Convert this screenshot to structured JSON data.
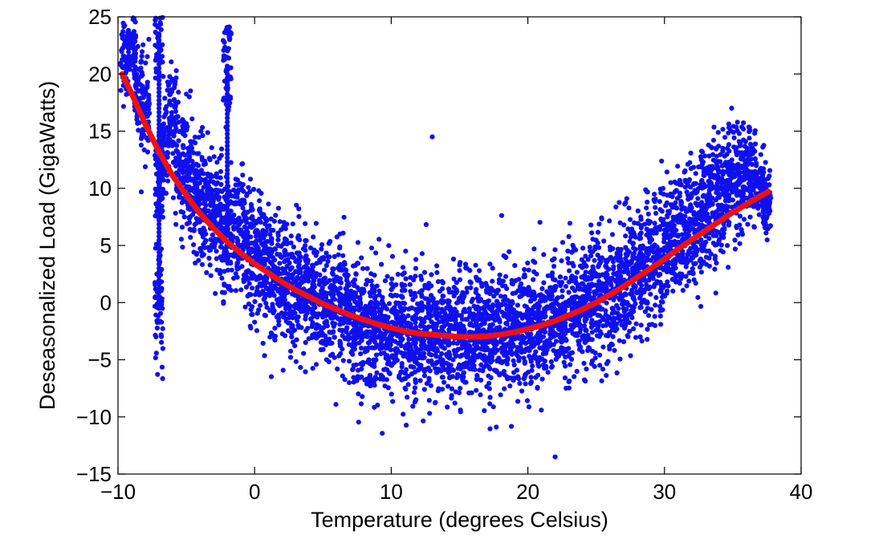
{
  "chart_data": {
    "type": "scatter",
    "title": "",
    "xlabel": "Temperature (degrees Celsius)",
    "ylabel": "Deseasonalized Load (GigaWatts)",
    "xlim": [
      -10,
      40
    ],
    "ylim": [
      -15,
      25
    ],
    "xticks": [
      -10,
      0,
      10,
      20,
      30,
      40
    ],
    "yticks": [
      -15,
      -10,
      -5,
      0,
      5,
      10,
      15,
      20,
      25
    ],
    "xtick_labels": [
      "−10",
      "0",
      "10",
      "20",
      "30",
      "40"
    ],
    "ytick_labels": [
      "−15",
      "−10",
      "−5",
      "0",
      "5",
      "10",
      "15",
      "20",
      "25"
    ],
    "grid": false,
    "legend": "none",
    "colors": {
      "scatter": "#1010ee",
      "fit": "#ee1111"
    },
    "series": [
      {
        "kind": "scatter",
        "x": [
          -9.5,
          -9.0,
          -8.5,
          -8.0,
          -7.0,
          -7.0,
          -7.0,
          -6.5,
          -6.0,
          -5.5,
          -5.0,
          -4.5,
          -4.0,
          -3.5,
          -3.0,
          -2.5,
          -2.0,
          -2.0,
          -1.5,
          -1.0,
          -0.5,
          0.0,
          0.5,
          1.0,
          1.5,
          2.0,
          2.5,
          3.0,
          3.5,
          4.0,
          4.5,
          5.0,
          5.5,
          6.0,
          6.5,
          7.0,
          7.5,
          8.0,
          8.5,
          9.0,
          9.5,
          10.0,
          10.5,
          11.0,
          11.5,
          12.0,
          12.5,
          13.0,
          13.5,
          14.0,
          14.5,
          15.0,
          15.5,
          16.0,
          16.5,
          17.0,
          17.5,
          18.0,
          18.5,
          19.0,
          19.5,
          20.0,
          20.5,
          21.0,
          21.5,
          22.0,
          22.5,
          23.0,
          23.5,
          24.0,
          24.5,
          25.0,
          25.5,
          26.0,
          26.5,
          27.0,
          27.5,
          28.0,
          28.5,
          29.0,
          29.5,
          30.0,
          30.5,
          31.0,
          31.5,
          32.0,
          32.5,
          33.0,
          33.5,
          34.0,
          34.5,
          35.0,
          35.5,
          36.0,
          36.5,
          37.0,
          37.5,
          -8.8,
          13.0,
          22.0
        ],
        "y": [
          21.5,
          23.0,
          18.5,
          17.0,
          23.5,
          10.5,
          -0.5,
          14.0,
          16.0,
          12.0,
          11.5,
          10.0,
          9.0,
          8.0,
          8.5,
          7.0,
          20.5,
          5.0,
          6.5,
          6.0,
          5.0,
          4.0,
          3.5,
          3.0,
          2.5,
          2.0,
          1.5,
          1.2,
          1.0,
          0.5,
          0.2,
          -0.2,
          -0.5,
          -0.8,
          -1.0,
          -1.3,
          -1.5,
          -1.8,
          -2.0,
          -2.1,
          -2.3,
          -2.4,
          -2.5,
          -2.6,
          -2.7,
          -2.8,
          -2.8,
          -2.9,
          -2.9,
          -2.9,
          -2.9,
          -2.9,
          -2.9,
          -2.8,
          -2.8,
          -2.7,
          -2.7,
          -2.6,
          -2.5,
          -2.4,
          -2.3,
          -2.2,
          -2.0,
          -1.9,
          -1.7,
          -1.5,
          -1.3,
          -1.1,
          -0.8,
          -0.5,
          -0.2,
          0.1,
          0.5,
          0.9,
          1.3,
          1.7,
          2.2,
          2.7,
          3.2,
          3.7,
          4.2,
          4.8,
          5.3,
          5.9,
          6.4,
          7.0,
          7.6,
          8.1,
          8.7,
          9.2,
          9.8,
          10.3,
          10.9,
          11.4,
          11.0,
          10.0,
          9.0,
          20.0,
          14.5,
          -13.5
        ],
        "spread": [
          3.0,
          3.0,
          3.0,
          3.5,
          4.0,
          4.0,
          4.0,
          4.0,
          4.0,
          4.5,
          4.5,
          4.5,
          4.5,
          4.5,
          4.5,
          4.5,
          4.5,
          4.5,
          4.5,
          4.5,
          4.5,
          4.5,
          4.5,
          4.5,
          4.5,
          4.5,
          4.5,
          4.5,
          4.5,
          4.5,
          4.5,
          4.5,
          4.5,
          4.5,
          4.5,
          4.5,
          4.5,
          4.5,
          4.5,
          4.5,
          4.5,
          4.5,
          4.5,
          4.5,
          4.5,
          4.5,
          4.5,
          4.5,
          4.5,
          4.5,
          4.5,
          4.5,
          4.5,
          4.5,
          4.5,
          4.5,
          4.5,
          4.5,
          4.5,
          4.5,
          4.5,
          4.5,
          4.5,
          4.5,
          4.5,
          4.5,
          4.5,
          4.5,
          4.5,
          4.5,
          4.5,
          4.5,
          4.5,
          4.5,
          4.5,
          4.5,
          4.5,
          4.5,
          4.5,
          4.5,
          4.5,
          4.5,
          4.5,
          4.5,
          4.5,
          4.5,
          4.5,
          4.5,
          4.5,
          4.5,
          4.5,
          4.0,
          4.0,
          3.5,
          3.0,
          2.5,
          2.5,
          0,
          0,
          0
        ]
      },
      {
        "kind": "line",
        "x": [
          -9.7,
          -9,
          -8,
          -7,
          -6,
          -5,
          -4,
          -3,
          -2,
          -1,
          0,
          1,
          2,
          3,
          4,
          5,
          6,
          7,
          8,
          9,
          10,
          11,
          12,
          13,
          14,
          15,
          16,
          17,
          18,
          19,
          20,
          21,
          22,
          23,
          24,
          25,
          26,
          27,
          28,
          29,
          30,
          31,
          32,
          33,
          34,
          35,
          36,
          37,
          37.6
        ],
        "y": [
          20.0,
          18.3,
          15.6,
          13.2,
          11.1,
          9.4,
          7.8,
          6.5,
          5.3,
          4.3,
          3.4,
          2.6,
          1.8,
          1.1,
          0.5,
          -0.1,
          -0.6,
          -1.1,
          -1.5,
          -1.9,
          -2.2,
          -2.5,
          -2.7,
          -2.8,
          -2.9,
          -3.0,
          -3.0,
          -2.95,
          -2.8,
          -2.6,
          -2.3,
          -2.0,
          -1.6,
          -1.1,
          -0.6,
          0.0,
          0.7,
          1.4,
          2.2,
          3.0,
          3.8,
          4.7,
          5.5,
          6.3,
          7.1,
          7.9,
          8.6,
          9.3,
          9.7
        ]
      }
    ]
  }
}
